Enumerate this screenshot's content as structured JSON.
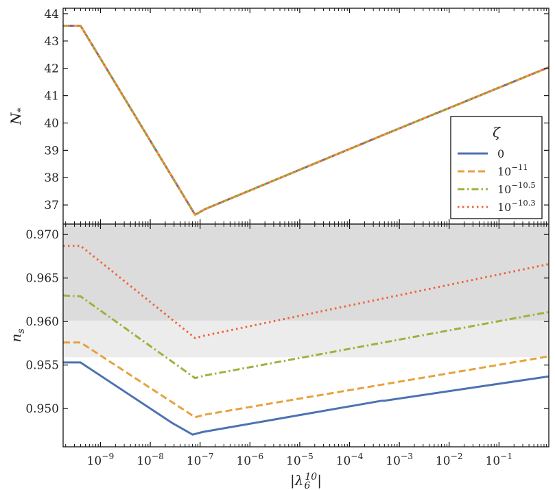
{
  "chart_data": [
    {
      "type": "line",
      "panel": "top",
      "ylabel": "N_*",
      "xscale": "log",
      "xlim_log10": [
        -9.75,
        0.0
      ],
      "ylim": [
        36.3,
        44.2
      ],
      "yticks": [
        37,
        38,
        39,
        40,
        41,
        42,
        43,
        44
      ],
      "ytick_labels": [
        "37",
        "38",
        "39",
        "40",
        "41",
        "42",
        "43",
        "44"
      ],
      "legend": {
        "title": "ζ",
        "placement": "right",
        "entries": [
          "0",
          "10^{-11}",
          "10^{-10.5}",
          "10^{-10.3}"
        ]
      },
      "series": [
        {
          "name": "0",
          "color": "#4c72b0",
          "style": "solid",
          "x_log10": [
            -9.75,
            -9.4,
            -7.1,
            -6.9,
            -3.35,
            -3.35,
            0.0
          ],
          "y": [
            43.56,
            43.56,
            36.64,
            36.85,
            39.54,
            39.54,
            42.04
          ]
        },
        {
          "name": "10^{-11}",
          "color": "#e6a23c",
          "style": "dashed",
          "x_log10": [
            -9.75,
            -9.4,
            -7.1,
            -6.9,
            -3.35,
            -3.35,
            0.0
          ],
          "y": [
            43.56,
            43.56,
            36.64,
            36.85,
            39.54,
            39.54,
            42.04
          ]
        },
        {
          "name": "10^{-10.5}",
          "color": "#9bb33d",
          "style": "dashdot",
          "x_log10": [
            -9.75,
            -9.4,
            -7.1,
            -6.9,
            -3.35,
            -3.35,
            0.0
          ],
          "y": [
            43.56,
            43.56,
            36.64,
            36.85,
            39.54,
            39.54,
            42.04
          ]
        },
        {
          "name": "10^{-10.3}",
          "color": "#f0623a",
          "style": "dotted",
          "x_log10": [
            -9.75,
            -9.4,
            -7.1,
            -6.9,
            -3.35,
            -3.35,
            0.0
          ],
          "y": [
            43.56,
            43.56,
            36.64,
            36.85,
            39.54,
            39.54,
            42.04
          ]
        }
      ]
    },
    {
      "type": "line",
      "panel": "bottom",
      "xlabel": "|λ_6^{10}|",
      "ylabel": "n_s",
      "xscale": "log",
      "xlim_log10": [
        -9.75,
        0.0
      ],
      "ylim": [
        0.9456,
        0.9712
      ],
      "yticks": [
        0.95,
        0.955,
        0.96,
        0.965,
        0.97
      ],
      "ytick_labels": [
        "0.950",
        "0.955",
        "0.960",
        "0.965",
        "0.970"
      ],
      "xticks_log10": [
        -9,
        -8,
        -7,
        -6,
        -5,
        -4,
        -3,
        -2,
        -1
      ],
      "xtick_labels": [
        "10^{-9}",
        "10^{-8}",
        "10^{-7}",
        "10^{-6}",
        "10^{-5}",
        "10^{-4}",
        "10^{-3}",
        "10^{-2}",
        "10^{-1}"
      ],
      "bands": [
        {
          "y0": 0.9601,
          "y1": 0.9712,
          "color": "#dcdcdc"
        },
        {
          "y0": 0.9559,
          "y1": 0.9601,
          "color": "#ececec"
        }
      ],
      "series": [
        {
          "name": "0",
          "color": "#4c72b0",
          "style": "solid",
          "x_log10": [
            -9.75,
            -9.4,
            -7.55,
            -7.15,
            -6.95,
            -3.35,
            -3.3,
            0.0
          ],
          "y": [
            0.9553,
            0.9553,
            0.9483,
            0.947,
            0.9473,
            0.9509,
            0.9509,
            0.9537
          ]
        },
        {
          "name": "10^{-11}",
          "color": "#e6a23c",
          "style": "dashed",
          "x_log10": [
            -9.75,
            -9.4,
            -7.1,
            -6.9,
            0.0
          ],
          "y": [
            0.9576,
            0.9576,
            0.949,
            0.9493,
            0.956
          ]
        },
        {
          "name": "10^{-10.5}",
          "color": "#9bb33d",
          "style": "dashdot",
          "x_log10": [
            -9.75,
            -9.4,
            -7.1,
            -6.9,
            0.0
          ],
          "y": [
            0.963,
            0.9629,
            0.9535,
            0.9538,
            0.9611
          ]
        },
        {
          "name": "10^{-10.3}",
          "color": "#f0623a",
          "style": "dotted",
          "x_log10": [
            -9.75,
            -9.4,
            -7.1,
            -6.9,
            0.0
          ],
          "y": [
            0.9687,
            0.9687,
            0.9581,
            0.9584,
            0.9666
          ]
        }
      ]
    }
  ]
}
